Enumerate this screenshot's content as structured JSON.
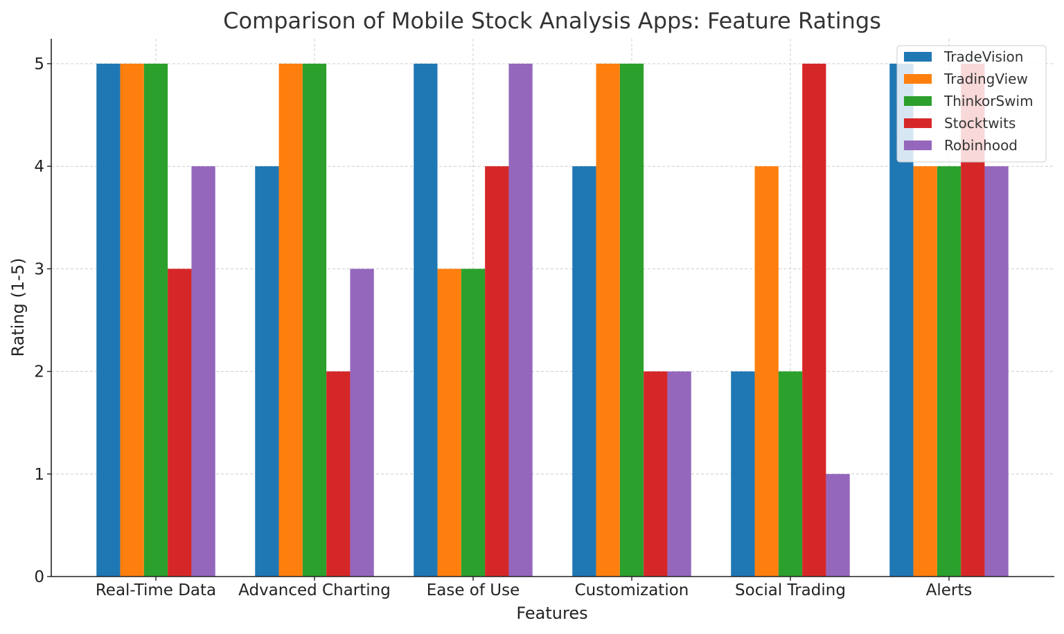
{
  "chart_data": {
    "type": "bar",
    "title": "Comparison of Mobile Stock Analysis Apps: Feature Ratings",
    "xlabel": "Features",
    "ylabel": "Rating (1-5)",
    "categories": [
      "Real-Time Data",
      "Advanced Charting",
      "Ease of Use",
      "Customization",
      "Social Trading",
      "Alerts"
    ],
    "series": [
      {
        "name": "TradeVision",
        "color": "#1f77b4",
        "values": [
          5,
          4,
          5,
          4,
          2,
          5
        ]
      },
      {
        "name": "TradingView",
        "color": "#ff7f0e",
        "values": [
          5,
          5,
          3,
          5,
          4,
          4
        ]
      },
      {
        "name": "ThinkorSwim",
        "color": "#2ca02c",
        "values": [
          5,
          5,
          3,
          5,
          2,
          4
        ]
      },
      {
        "name": "Stocktwits",
        "color": "#d62728",
        "values": [
          3,
          2,
          4,
          2,
          5,
          5
        ]
      },
      {
        "name": "Robinhood",
        "color": "#9467bd",
        "values": [
          4,
          3,
          5,
          2,
          1,
          4
        ]
      }
    ],
    "yticks": [
      0,
      1,
      2,
      3,
      4,
      5
    ],
    "ylim": [
      0,
      5.25
    ],
    "grid": true,
    "legend": "top-right"
  }
}
